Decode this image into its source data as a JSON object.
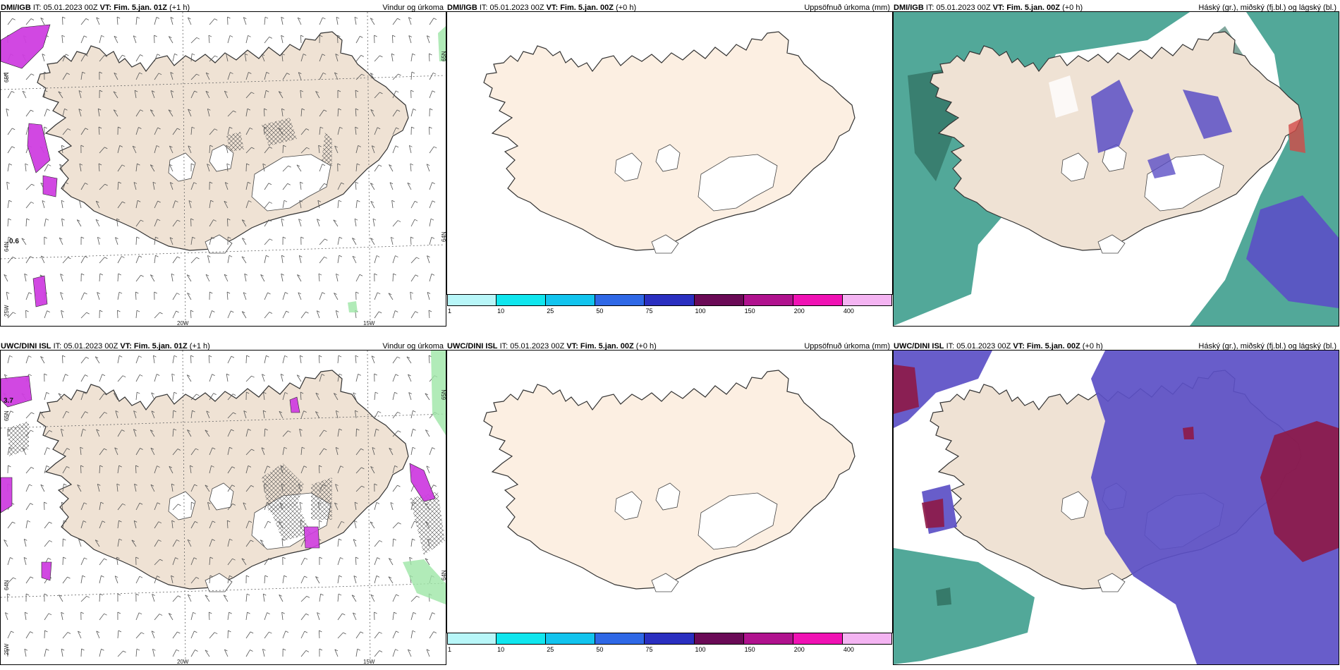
{
  "panels": [
    {
      "model": "DMI/IGB",
      "it": "IT: 05.01.2023 00Z",
      "vt": "VT: Fim. 5.jan. 01Z",
      "lead": "(+1 h)",
      "product": "Vindur og úrkoma",
      "type": "wind",
      "values": [
        "0.6"
      ],
      "xticks": [
        "20W",
        "15W"
      ],
      "yticks": [
        "65N",
        "64N",
        "25W"
      ]
    },
    {
      "model": "DMI/IGB",
      "it": "IT: 05.01.2023 00Z",
      "vt": "VT: Fim. 5.jan. 00Z",
      "lead": "(+0 h)",
      "product": "Uppsöfnuð úrkoma (mm)",
      "type": "precip",
      "values": [],
      "xticks": [],
      "yticks": []
    },
    {
      "model": "DMI/IGB",
      "it": "IT: 05.01.2023 00Z",
      "vt": "VT: Fim. 5.jan. 00Z",
      "lead": "(+0 h)",
      "product": "Háský (gr.), miðský (fj.bl.) og lágský (bl.)",
      "type": "cloud",
      "variant": "a",
      "values": [],
      "xticks": [],
      "yticks": []
    },
    {
      "model": "UWC/DINI ISL",
      "it": "IT: 05.01.2023 00Z",
      "vt": "VT: Fim. 5.jan. 01Z",
      "lead": "(+1 h)",
      "product": "Vindur og úrkoma",
      "type": "wind",
      "values": [
        "3.7"
      ],
      "xticks": [
        "20W",
        "15W"
      ],
      "yticks": [
        "65N",
        "64N",
        "25W"
      ]
    },
    {
      "model": "UWC/DINI ISL",
      "it": "IT: 05.01.2023 00Z",
      "vt": "VT: Fim. 5.jan. 00Z",
      "lead": "(+0 h)",
      "product": "Uppsöfnuð úrkoma (mm)",
      "type": "precip",
      "values": [],
      "xticks": [],
      "yticks": []
    },
    {
      "model": "UWC/DINI ISL",
      "it": "IT: 05.01.2023 00Z",
      "vt": "VT: Fim. 5.jan. 00Z",
      "lead": "(+0 h)",
      "product": "Háský (gr.), miðský (fj.bl.) og lágský (bl.)",
      "type": "cloud",
      "variant": "b",
      "values": [],
      "xticks": [],
      "yticks": []
    }
  ],
  "colorbar": {
    "ticks": [
      "1",
      "10",
      "25",
      "50",
      "75",
      "100",
      "150",
      "200",
      "400"
    ],
    "colors": [
      "#b8f6f8",
      "#10e6ee",
      "#12c4ee",
      "#2f68e6",
      "#2a2fc0",
      "#6a0a56",
      "#b0128e",
      "#f012b4",
      "#f4b4f2"
    ]
  },
  "colors": {
    "land": "#efe2d4",
    "land_precip": "#fcefe2",
    "coast": "#333333",
    "cloud_high": "#3f9e8e",
    "cloud_mid": "#5b4fc6",
    "cloud_low": "#8e1846"
  }
}
